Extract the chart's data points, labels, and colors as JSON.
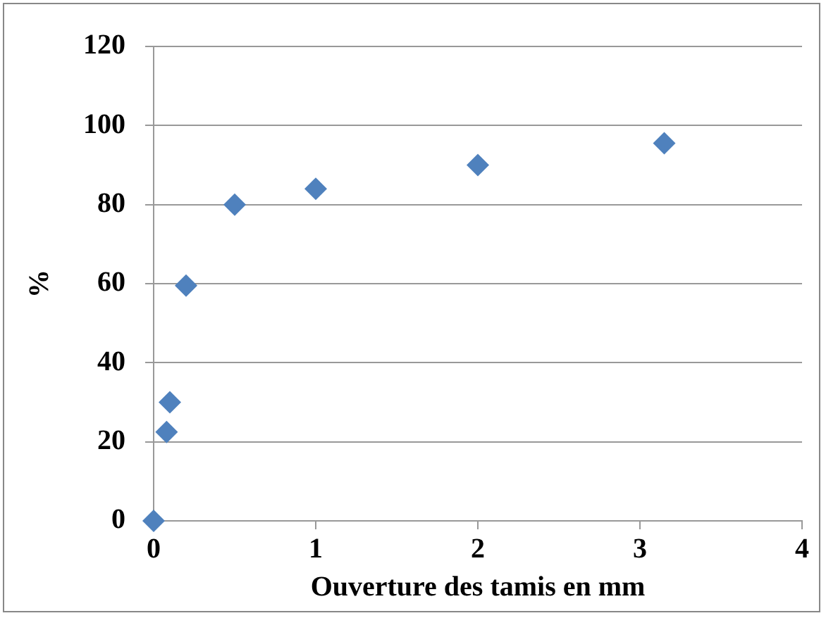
{
  "chart_data": {
    "type": "scatter",
    "xlabel": "Ouverture des tamis en mm",
    "ylabel": "%",
    "x": [
      0,
      0.08,
      0.1,
      0.2,
      0.5,
      1,
      2,
      3.15
    ],
    "values": [
      0,
      22.5,
      30,
      59.5,
      80,
      84,
      90,
      95.5
    ],
    "color": "#4f81bd",
    "marker": "diamond",
    "xlim": [
      0,
      4
    ],
    "xticks": [
      0,
      1,
      2,
      3,
      4
    ],
    "ylim": [
      0,
      120
    ],
    "yticks": [
      0,
      20,
      40,
      60,
      80,
      100,
      120
    ],
    "grid": "y",
    "legend": false
  }
}
